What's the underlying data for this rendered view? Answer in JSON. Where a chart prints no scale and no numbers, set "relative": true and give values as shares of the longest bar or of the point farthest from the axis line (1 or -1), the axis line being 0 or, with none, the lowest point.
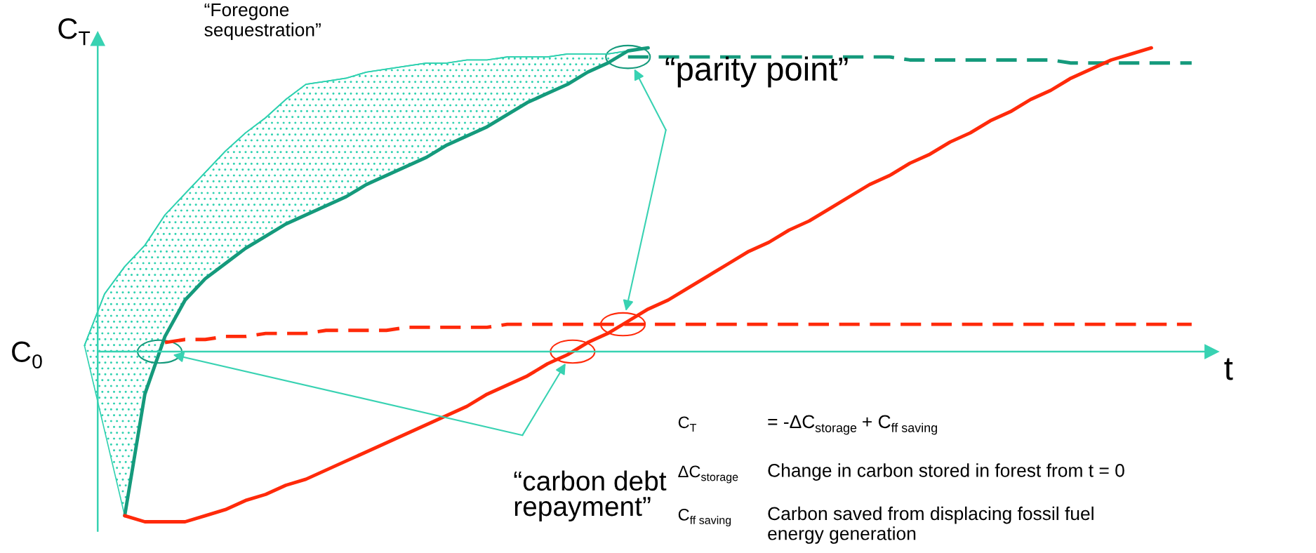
{
  "chart_data": {
    "type": "line",
    "relative": true,
    "categories": [
      null,
      null,
      null,
      null,
      null,
      null,
      null,
      null,
      null,
      null,
      null,
      null,
      null,
      null,
      null,
      null,
      null,
      null,
      null,
      null,
      null,
      null,
      null,
      null,
      null,
      null,
      null,
      null,
      null,
      null,
      null,
      null,
      null,
      null,
      null,
      null,
      null,
      null,
      null,
      null,
      null,
      null,
      null,
      null,
      null,
      null,
      null,
      null,
      null,
      null,
      null,
      null,
      null,
      null,
      null,
      null
    ],
    "xlabel": "t",
    "ylabel": "C$_{T}$",
    "legend": false,
    "marker": "none",
    "ref_lines": [
      {
        "axis": "y",
        "value": 0,
        "label": "C$_{0}$",
        "color": "#38d2b2"
      }
    ],
    "series": [
      {
        "color": "#2fd1b0",
        "line_style": "solid",
        "values": [
          0.02,
          0.19,
          0.28,
          0.35,
          0.45,
          0.52,
          0.59,
          0.66,
          0.72,
          0.77,
          0.83,
          0.88,
          0.89,
          0.9,
          0.92,
          0.93,
          0.94,
          0.95,
          0.95,
          0.96,
          0.96,
          0.97,
          0.97,
          0.97,
          0.98,
          0.98,
          0.98,
          0.99,
          null,
          null,
          null,
          null,
          null,
          null,
          null,
          null,
          null,
          null,
          null,
          null,
          null,
          null,
          null,
          null,
          null,
          null,
          null,
          null,
          null,
          null,
          null,
          null,
          null,
          null,
          null,
          null
        ],
        "upper": [
          0.02,
          0.19,
          0.28,
          0.35,
          0.45,
          0.52,
          0.59,
          0.66,
          0.72,
          0.77,
          0.83,
          0.88,
          0.89,
          0.9,
          0.92,
          0.93,
          0.94,
          0.95,
          0.95,
          0.96,
          0.96,
          0.97,
          0.97,
          0.97,
          0.98,
          0.98,
          0.98,
          0.99,
          null,
          null,
          null,
          null,
          null,
          null,
          null,
          null,
          null,
          null,
          null,
          null,
          null,
          null,
          null,
          null,
          null,
          null,
          null,
          null,
          null,
          null,
          null,
          null,
          null,
          null,
          null,
          null
        ],
        "lower": [
          0.02,
          -0.26,
          -0.54,
          -0.14,
          0.05,
          0.17,
          0.24,
          0.29,
          0.34,
          0.38,
          0.42,
          0.45,
          0.48,
          0.51,
          0.55,
          0.58,
          0.61,
          0.64,
          0.68,
          0.71,
          0.74,
          0.78,
          0.82,
          0.85,
          0.88,
          0.92,
          0.95,
          0.99,
          null,
          null,
          null,
          null,
          null,
          null,
          null,
          null,
          null,
          null,
          null,
          null,
          null,
          null,
          null,
          null,
          null,
          null,
          null,
          null,
          null,
          null,
          null,
          null,
          null,
          null,
          null,
          null
        ]
      },
      {
        "color": "#159a7c",
        "line_style": "solid",
        "values": [
          null,
          null,
          -0.54,
          -0.14,
          0.05,
          0.17,
          0.24,
          0.29,
          0.34,
          0.38,
          0.42,
          0.45,
          0.48,
          0.51,
          0.55,
          0.58,
          0.61,
          0.64,
          0.68,
          0.71,
          0.74,
          0.78,
          0.82,
          0.85,
          0.88,
          0.92,
          0.95,
          0.99,
          1.0,
          null,
          null,
          null,
          null,
          null,
          null,
          null,
          null,
          null,
          null,
          null,
          null,
          null,
          null,
          null,
          null,
          null,
          null,
          null,
          null,
          null,
          null,
          null,
          null,
          null,
          null,
          null
        ]
      },
      {
        "color": "#159a7c",
        "line_style": "dashed",
        "values": [
          null,
          null,
          null,
          null,
          null,
          null,
          null,
          null,
          null,
          null,
          null,
          null,
          null,
          null,
          null,
          null,
          null,
          null,
          null,
          null,
          null,
          null,
          null,
          null,
          null,
          null,
          null,
          0.97,
          0.97,
          0.97,
          0.97,
          0.97,
          0.97,
          0.97,
          0.97,
          0.97,
          0.97,
          0.97,
          0.97,
          0.97,
          0.97,
          0.96,
          0.96,
          0.96,
          0.96,
          0.96,
          0.96,
          0.96,
          0.96,
          0.95,
          0.95,
          0.95,
          0.95,
          0.95,
          0.95,
          0.95
        ]
      },
      {
        "color": "#ff2a0a",
        "line_style": "solid",
        "values": [
          null,
          null,
          -0.54,
          -0.56,
          -0.56,
          -0.56,
          -0.54,
          -0.52,
          -0.49,
          -0.47,
          -0.44,
          -0.42,
          -0.39,
          -0.36,
          -0.33,
          -0.3,
          -0.27,
          -0.24,
          -0.21,
          -0.18,
          -0.14,
          -0.11,
          -0.08,
          -0.04,
          -0.01,
          0.03,
          0.06,
          0.1,
          0.14,
          0.17,
          0.21,
          0.25,
          0.29,
          0.33,
          0.36,
          0.4,
          0.43,
          0.47,
          0.51,
          0.55,
          0.58,
          0.62,
          0.65,
          0.69,
          0.72,
          0.76,
          0.79,
          0.83,
          0.86,
          0.9,
          0.93,
          0.96,
          0.98,
          1.0,
          null,
          null
        ]
      },
      {
        "color": "#ff2a0a",
        "line_style": "dashed",
        "values": [
          null,
          null,
          null,
          null,
          0.03,
          0.04,
          0.04,
          0.05,
          0.05,
          0.06,
          0.06,
          0.06,
          0.07,
          0.07,
          0.07,
          0.07,
          0.08,
          0.08,
          0.08,
          0.08,
          0.08,
          0.09,
          0.09,
          0.09,
          0.09,
          0.09,
          0.09,
          0.09,
          0.09,
          0.09,
          0.09,
          0.09,
          0.09,
          0.09,
          0.09,
          0.09,
          0.09,
          0.09,
          0.09,
          0.09,
          0.09,
          0.09,
          0.09,
          0.09,
          0.09,
          0.09,
          0.09,
          0.09,
          0.09,
          0.09,
          0.09,
          0.09,
          0.09,
          0.09,
          0.09,
          0.09
        ]
      }
    ],
    "annotations": [
      "“Foregone\nsequestration”",
      "“parity point”",
      "“carbon debt\nrepayment”",
      "C$_{T}$",
      "= -ΔC$_{storage}$ + C$_{ff saving}$",
      "ΔC$_{storage}$",
      "Change in carbon stored in forest from t = 0",
      "C$_{ff saving}$",
      "Carbon saved from displacing fossil fuel\nenergy generation"
    ]
  }
}
